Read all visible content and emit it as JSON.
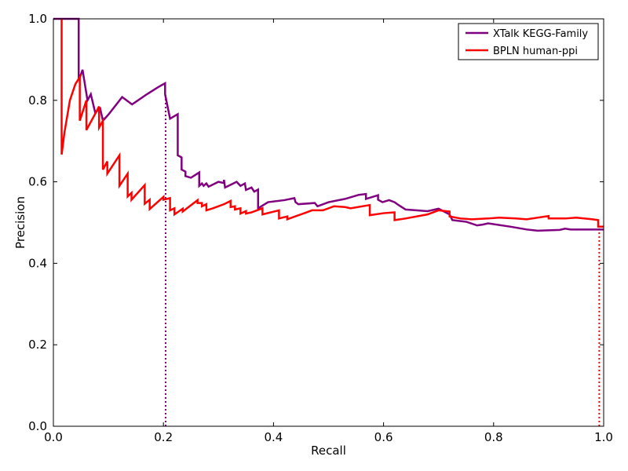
{
  "chart_data": {
    "type": "line",
    "title": "",
    "xlabel": "Recall",
    "ylabel": "Precision",
    "xlim": [
      0.0,
      1.0
    ],
    "ylim": [
      0.0,
      1.0
    ],
    "x_ticks": [
      "0.0",
      "0.2",
      "0.4",
      "0.6",
      "0.8",
      "1.0"
    ],
    "y_ticks": [
      "0.0",
      "0.2",
      "0.4",
      "0.6",
      "0.8",
      "1.0"
    ],
    "grid": false,
    "legend_position": "top-right",
    "series": [
      {
        "name": "XTalk KEGG-Family",
        "color": "#800080",
        "points": [
          [
            0.0,
            1.0
          ],
          [
            0.046,
            1.0
          ],
          [
            0.046,
            0.848
          ],
          [
            0.053,
            0.875
          ],
          [
            0.062,
            0.8
          ],
          [
            0.068,
            0.815
          ],
          [
            0.076,
            0.77
          ],
          [
            0.085,
            0.78
          ],
          [
            0.09,
            0.75
          ],
          [
            0.1,
            0.765
          ],
          [
            0.125,
            0.808
          ],
          [
            0.143,
            0.79
          ],
          [
            0.17,
            0.815
          ],
          [
            0.19,
            0.832
          ],
          [
            0.203,
            0.842
          ],
          [
            0.203,
            0.815
          ],
          [
            0.212,
            0.755
          ],
          [
            0.226,
            0.766
          ],
          [
            0.226,
            0.665
          ],
          [
            0.233,
            0.66
          ],
          [
            0.233,
            0.63
          ],
          [
            0.24,
            0.625
          ],
          [
            0.24,
            0.614
          ],
          [
            0.25,
            0.61
          ],
          [
            0.265,
            0.623
          ],
          [
            0.265,
            0.59
          ],
          [
            0.27,
            0.596
          ],
          [
            0.273,
            0.59
          ],
          [
            0.278,
            0.596
          ],
          [
            0.282,
            0.588
          ],
          [
            0.3,
            0.6
          ],
          [
            0.31,
            0.597
          ],
          [
            0.31,
            0.605
          ],
          [
            0.312,
            0.586
          ],
          [
            0.333,
            0.6
          ],
          [
            0.34,
            0.59
          ],
          [
            0.348,
            0.596
          ],
          [
            0.35,
            0.58
          ],
          [
            0.36,
            0.586
          ],
          [
            0.365,
            0.576
          ],
          [
            0.372,
            0.581
          ],
          [
            0.372,
            0.535
          ],
          [
            0.39,
            0.55
          ],
          [
            0.42,
            0.555
          ],
          [
            0.438,
            0.56
          ],
          [
            0.44,
            0.55
          ],
          [
            0.445,
            0.545
          ],
          [
            0.475,
            0.548
          ],
          [
            0.48,
            0.54
          ],
          [
            0.5,
            0.55
          ],
          [
            0.53,
            0.558
          ],
          [
            0.555,
            0.568
          ],
          [
            0.568,
            0.57
          ],
          [
            0.568,
            0.558
          ],
          [
            0.59,
            0.567
          ],
          [
            0.59,
            0.556
          ],
          [
            0.598,
            0.55
          ],
          [
            0.61,
            0.555
          ],
          [
            0.62,
            0.55
          ],
          [
            0.625,
            0.545
          ],
          [
            0.64,
            0.532
          ],
          [
            0.68,
            0.528
          ],
          [
            0.7,
            0.534
          ],
          [
            0.72,
            0.52
          ],
          [
            0.725,
            0.506
          ],
          [
            0.75,
            0.502
          ],
          [
            0.77,
            0.493
          ],
          [
            0.78,
            0.495
          ],
          [
            0.79,
            0.498
          ],
          [
            0.83,
            0.49
          ],
          [
            0.86,
            0.483
          ],
          [
            0.88,
            0.48
          ],
          [
            0.92,
            0.482
          ],
          [
            0.93,
            0.485
          ],
          [
            0.94,
            0.483
          ],
          [
            1.0,
            0.483
          ]
        ]
      },
      {
        "name": "BPLN human-ppi",
        "color": "#ff0000",
        "points": [
          [
            0.015,
            1.0
          ],
          [
            0.015,
            0.667
          ],
          [
            0.02,
            0.72
          ],
          [
            0.03,
            0.8
          ],
          [
            0.04,
            0.84
          ],
          [
            0.048,
            0.857
          ],
          [
            0.048,
            0.75
          ],
          [
            0.06,
            0.8
          ],
          [
            0.06,
            0.727
          ],
          [
            0.08,
            0.777
          ],
          [
            0.083,
            0.785
          ],
          [
            0.083,
            0.733
          ],
          [
            0.09,
            0.75
          ],
          [
            0.09,
            0.63
          ],
          [
            0.098,
            0.65
          ],
          [
            0.098,
            0.62
          ],
          [
            0.12,
            0.665
          ],
          [
            0.12,
            0.59
          ],
          [
            0.135,
            0.62
          ],
          [
            0.135,
            0.564
          ],
          [
            0.142,
            0.573
          ],
          [
            0.142,
            0.556
          ],
          [
            0.166,
            0.592
          ],
          [
            0.166,
            0.546
          ],
          [
            0.175,
            0.556
          ],
          [
            0.175,
            0.533
          ],
          [
            0.2,
            0.563
          ],
          [
            0.2,
            0.556
          ],
          [
            0.212,
            0.56
          ],
          [
            0.212,
            0.53
          ],
          [
            0.22,
            0.535
          ],
          [
            0.22,
            0.52
          ],
          [
            0.235,
            0.534
          ],
          [
            0.235,
            0.527
          ],
          [
            0.262,
            0.555
          ],
          [
            0.262,
            0.548
          ],
          [
            0.27,
            0.548
          ],
          [
            0.27,
            0.54
          ],
          [
            0.278,
            0.545
          ],
          [
            0.278,
            0.53
          ],
          [
            0.29,
            0.535
          ],
          [
            0.31,
            0.545
          ],
          [
            0.322,
            0.553
          ],
          [
            0.322,
            0.538
          ],
          [
            0.33,
            0.54
          ],
          [
            0.33,
            0.532
          ],
          [
            0.34,
            0.535
          ],
          [
            0.34,
            0.522
          ],
          [
            0.35,
            0.528
          ],
          [
            0.35,
            0.522
          ],
          [
            0.36,
            0.525
          ],
          [
            0.38,
            0.535
          ],
          [
            0.38,
            0.52
          ],
          [
            0.41,
            0.53
          ],
          [
            0.41,
            0.51
          ],
          [
            0.425,
            0.515
          ],
          [
            0.425,
            0.508
          ],
          [
            0.46,
            0.525
          ],
          [
            0.47,
            0.53
          ],
          [
            0.49,
            0.53
          ],
          [
            0.51,
            0.54
          ],
          [
            0.53,
            0.538
          ],
          [
            0.54,
            0.535
          ],
          [
            0.575,
            0.543
          ],
          [
            0.575,
            0.518
          ],
          [
            0.6,
            0.523
          ],
          [
            0.62,
            0.525
          ],
          [
            0.62,
            0.506
          ],
          [
            0.64,
            0.51
          ],
          [
            0.68,
            0.52
          ],
          [
            0.7,
            0.53
          ],
          [
            0.72,
            0.527
          ],
          [
            0.72,
            0.515
          ],
          [
            0.74,
            0.51
          ],
          [
            0.76,
            0.508
          ],
          [
            0.79,
            0.51
          ],
          [
            0.81,
            0.512
          ],
          [
            0.84,
            0.51
          ],
          [
            0.86,
            0.508
          ],
          [
            0.9,
            0.516
          ],
          [
            0.9,
            0.51
          ],
          [
            0.93,
            0.51
          ],
          [
            0.95,
            0.512
          ],
          [
            0.98,
            0.508
          ],
          [
            0.99,
            0.506
          ],
          [
            0.99,
            0.49
          ],
          [
            1.0,
            0.49
          ]
        ]
      }
    ],
    "reference_lines": [
      {
        "type": "vertical",
        "x": 0.204,
        "y_to": 0.815,
        "color": "#800080",
        "style": "dotted"
      },
      {
        "type": "vertical",
        "x": 0.992,
        "y_to": 0.49,
        "color": "#ff0000",
        "style": "dotted"
      }
    ]
  }
}
